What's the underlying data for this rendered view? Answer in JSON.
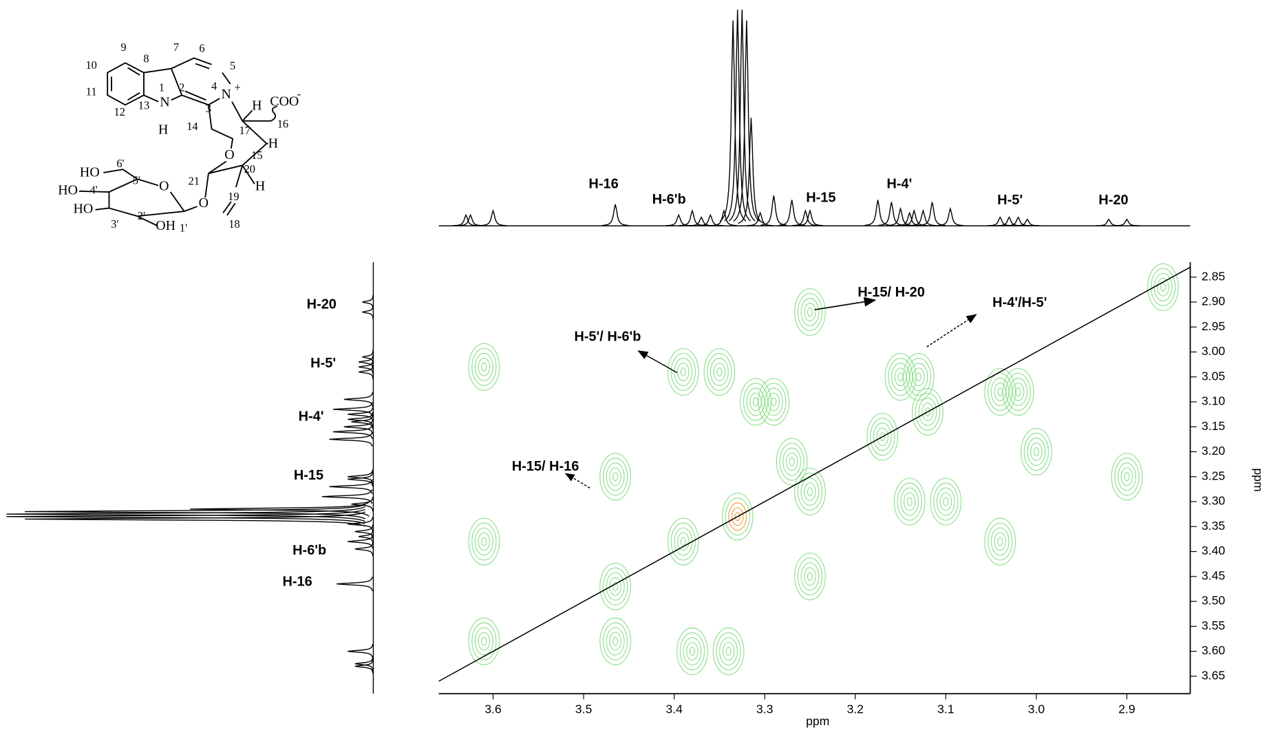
{
  "chart_data": {
    "type": "cosy",
    "xlabel": "ppm",
    "ylabel": "ppm",
    "xlim": [
      3.66,
      2.83
    ],
    "ylim": [
      2.82,
      3.685
    ],
    "xticks": [
      3.6,
      3.5,
      3.4,
      3.3,
      3.2,
      3.1,
      {
        "value": 3,
        "label": "3.0"
      },
      2.9
    ],
    "yticks": [
      2.85,
      {
        "value": 2.9,
        "label": "2.90"
      },
      2.95,
      {
        "value": 3,
        "label": "3.00"
      },
      3.05,
      {
        "value": 3.1,
        "label": "3.10"
      },
      3.15,
      {
        "value": 3.2,
        "label": "3.20"
      },
      3.25,
      {
        "value": 3.3,
        "label": "3.30"
      },
      3.35,
      {
        "value": 3.4,
        "label": "3.40"
      },
      3.45,
      {
        "value": 3.5,
        "label": "3.50"
      },
      3.55,
      {
        "value": 3.6,
        "label": "3.60"
      },
      3.65
    ],
    "color": "#8fe08f",
    "cross_peaks": [
      {
        "x": 3.61,
        "y": 3.03
      },
      {
        "x": 3.61,
        "y": 3.38
      },
      {
        "x": 3.61,
        "y": 3.58
      },
      {
        "x": 3.465,
        "y": 3.25
      },
      {
        "x": 3.465,
        "y": 3.47
      },
      {
        "x": 3.465,
        "y": 3.58
      },
      {
        "x": 3.39,
        "y": 3.04
      },
      {
        "x": 3.35,
        "y": 3.04
      },
      {
        "x": 3.39,
        "y": 3.38
      },
      {
        "x": 3.33,
        "y": 3.33,
        "color": "#f0a040"
      },
      {
        "x": 3.38,
        "y": 3.6
      },
      {
        "x": 3.34,
        "y": 3.6
      },
      {
        "x": 3.31,
        "y": 3.1
      },
      {
        "x": 3.29,
        "y": 3.1
      },
      {
        "x": 3.27,
        "y": 3.22
      },
      {
        "x": 3.25,
        "y": 3.28
      },
      {
        "x": 3.25,
        "y": 2.92
      },
      {
        "x": 3.25,
        "y": 3.45
      },
      {
        "x": 3.15,
        "y": 3.05
      },
      {
        "x": 3.13,
        "y": 3.05
      },
      {
        "x": 3.14,
        "y": 3.3
      },
      {
        "x": 3.1,
        "y": 3.3
      },
      {
        "x": 3.17,
        "y": 3.17
      },
      {
        "x": 3.12,
        "y": 3.12
      },
      {
        "x": 3.04,
        "y": 3.08
      },
      {
        "x": 3.02,
        "y": 3.08
      },
      {
        "x": 3.04,
        "y": 3.38
      },
      {
        "x": 3.0,
        "y": 3.2
      },
      {
        "x": 2.9,
        "y": 3.25
      },
      {
        "x": 2.86,
        "y": 2.87
      }
    ],
    "projection_color": "#000000",
    "projection_peaks": [
      {
        "ppm": 3.63,
        "height": 0.05
      },
      {
        "ppm": 3.625,
        "height": 0.05
      },
      {
        "ppm": 3.6,
        "height": 0.07
      },
      {
        "ppm": 3.465,
        "height": 0.1
      },
      {
        "ppm": 3.395,
        "height": 0.05
      },
      {
        "ppm": 3.38,
        "height": 0.07
      },
      {
        "ppm": 3.37,
        "height": 0.04
      },
      {
        "ppm": 3.36,
        "height": 0.05
      },
      {
        "ppm": 3.345,
        "height": 0.07
      },
      {
        "ppm": 3.335,
        "height": 0.95
      },
      {
        "ppm": 3.33,
        "height": 1
      },
      {
        "ppm": 3.325,
        "height": 1
      },
      {
        "ppm": 3.32,
        "height": 0.95
      },
      {
        "ppm": 3.315,
        "height": 0.5
      },
      {
        "ppm": 3.305,
        "height": 0.06
      },
      {
        "ppm": 3.29,
        "height": 0.14
      },
      {
        "ppm": 3.27,
        "height": 0.12
      },
      {
        "ppm": 3.255,
        "height": 0.07
      },
      {
        "ppm": 3.25,
        "height": 0.07
      },
      {
        "ppm": 3.175,
        "height": 0.12
      },
      {
        "ppm": 3.16,
        "height": 0.11
      },
      {
        "ppm": 3.15,
        "height": 0.08
      },
      {
        "ppm": 3.14,
        "height": 0.06
      },
      {
        "ppm": 3.135,
        "height": 0.07
      },
      {
        "ppm": 3.125,
        "height": 0.07
      },
      {
        "ppm": 3.115,
        "height": 0.11
      },
      {
        "ppm": 3.095,
        "height": 0.08
      },
      {
        "ppm": 3.04,
        "height": 0.04
      },
      {
        "ppm": 3.03,
        "height": 0.04
      },
      {
        "ppm": 3.02,
        "height": 0.04
      },
      {
        "ppm": 3.01,
        "height": 0.03
      },
      {
        "ppm": 2.92,
        "height": 0.03
      },
      {
        "ppm": 2.9,
        "height": 0.03
      }
    ],
    "peak_labels": [
      "H-16",
      "H-6'b",
      "H-15",
      "H-4'",
      "H-5'",
      "H-20"
    ],
    "annotations": [
      "H-15/ H-20",
      "H-4'/H-5'",
      "H-5'/ H-6'b",
      "H-15/ H-16"
    ]
  },
  "structure": {
    "labels": [
      "9",
      "8",
      "7",
      "6",
      "5",
      "10",
      "11",
      "1",
      "2",
      "4",
      "N",
      "+",
      "12",
      "13",
      "N",
      "H",
      "3",
      "H",
      "COO",
      "-",
      "14",
      "16",
      "17",
      "O",
      "15",
      "H",
      "20",
      "6'",
      "HO",
      "5'",
      "O",
      "21",
      "H",
      "HO",
      "4'",
      "19",
      "O",
      "HO",
      "2'",
      "OH",
      "1'",
      "3'",
      "18"
    ]
  }
}
